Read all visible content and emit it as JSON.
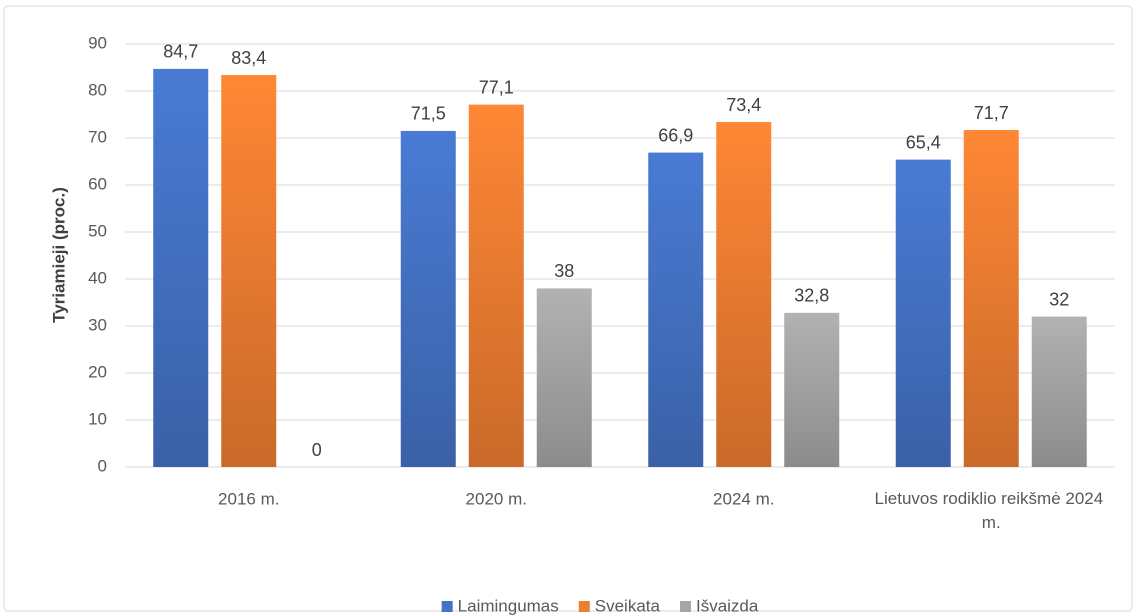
{
  "chart_data": {
    "type": "bar",
    "y_label": "Tyriamieji (proc.)",
    "categories": [
      "2016 m.",
      "2020 m.",
      "2024 m.",
      "Lietuvos rodiklio reikšmė 2024 m."
    ],
    "series": [
      {
        "name": "Laimingumas",
        "color": "#4472c4",
        "values": [
          84.7,
          71.5,
          66.9,
          65.4
        ],
        "value_labels": [
          "84,7",
          "71,5",
          "66,9",
          "65,4"
        ]
      },
      {
        "name": "Sveikata",
        "color": "#ed7d31",
        "values": [
          83.4,
          77.1,
          73.4,
          71.7
        ],
        "value_labels": [
          "83,4",
          "77,1",
          "73,4",
          "71,7"
        ]
      },
      {
        "name": "Išvaizda",
        "color": "#a5a5a5",
        "values": [
          0,
          38,
          32.8,
          32
        ],
        "value_labels": [
          "0",
          "38",
          "32,8",
          "32"
        ]
      }
    ],
    "ylim": [
      0,
      90
    ],
    "yticks": [
      0,
      10,
      20,
      30,
      40,
      50,
      60,
      70,
      80,
      90
    ],
    "grid": true,
    "legend": "bottom"
  }
}
